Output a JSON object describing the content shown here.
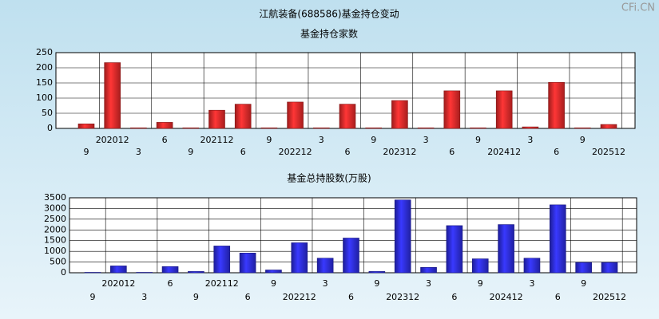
{
  "header": {
    "title": "江航装备(688586)基金持仓变动",
    "watermark": "CFi.CN"
  },
  "chart_data": [
    {
      "type": "bar",
      "title": "基金持仓家数",
      "color": "#e02828",
      "categories": [
        "9",
        "202012",
        "3",
        "6",
        "9",
        "202112",
        "6",
        "9",
        "202212",
        "3",
        "6",
        "9",
        "202312",
        "3",
        "6",
        "9",
        "202412",
        "3",
        "6",
        "9",
        "202512"
      ],
      "values": [
        15,
        217,
        2,
        20,
        2,
        60,
        80,
        2,
        87,
        2,
        80,
        2,
        92,
        2,
        124,
        2,
        124,
        5,
        152,
        2,
        13
      ],
      "ylim": [
        0,
        250
      ],
      "yticks": [
        0,
        50,
        100,
        150,
        200,
        250
      ],
      "grid": true
    },
    {
      "type": "bar",
      "title": "基金总持股数(万股)",
      "color": "#2a2ad8",
      "categories": [
        "9",
        "202012",
        "3",
        "6",
        "9",
        "202112",
        "6",
        "9",
        "202212",
        "3",
        "6",
        "9",
        "202312",
        "3",
        "6",
        "9",
        "202412",
        "3",
        "6",
        "9",
        "202512"
      ],
      "values": [
        20,
        320,
        20,
        290,
        60,
        1250,
        920,
        130,
        1400,
        680,
        1620,
        60,
        3400,
        250,
        2200,
        650,
        2250,
        680,
        3170,
        480,
        480
      ],
      "ylim": [
        0,
        3500
      ],
      "yticks": [
        0,
        500,
        1000,
        1500,
        2000,
        2500,
        3000,
        3500
      ],
      "grid": true
    }
  ]
}
